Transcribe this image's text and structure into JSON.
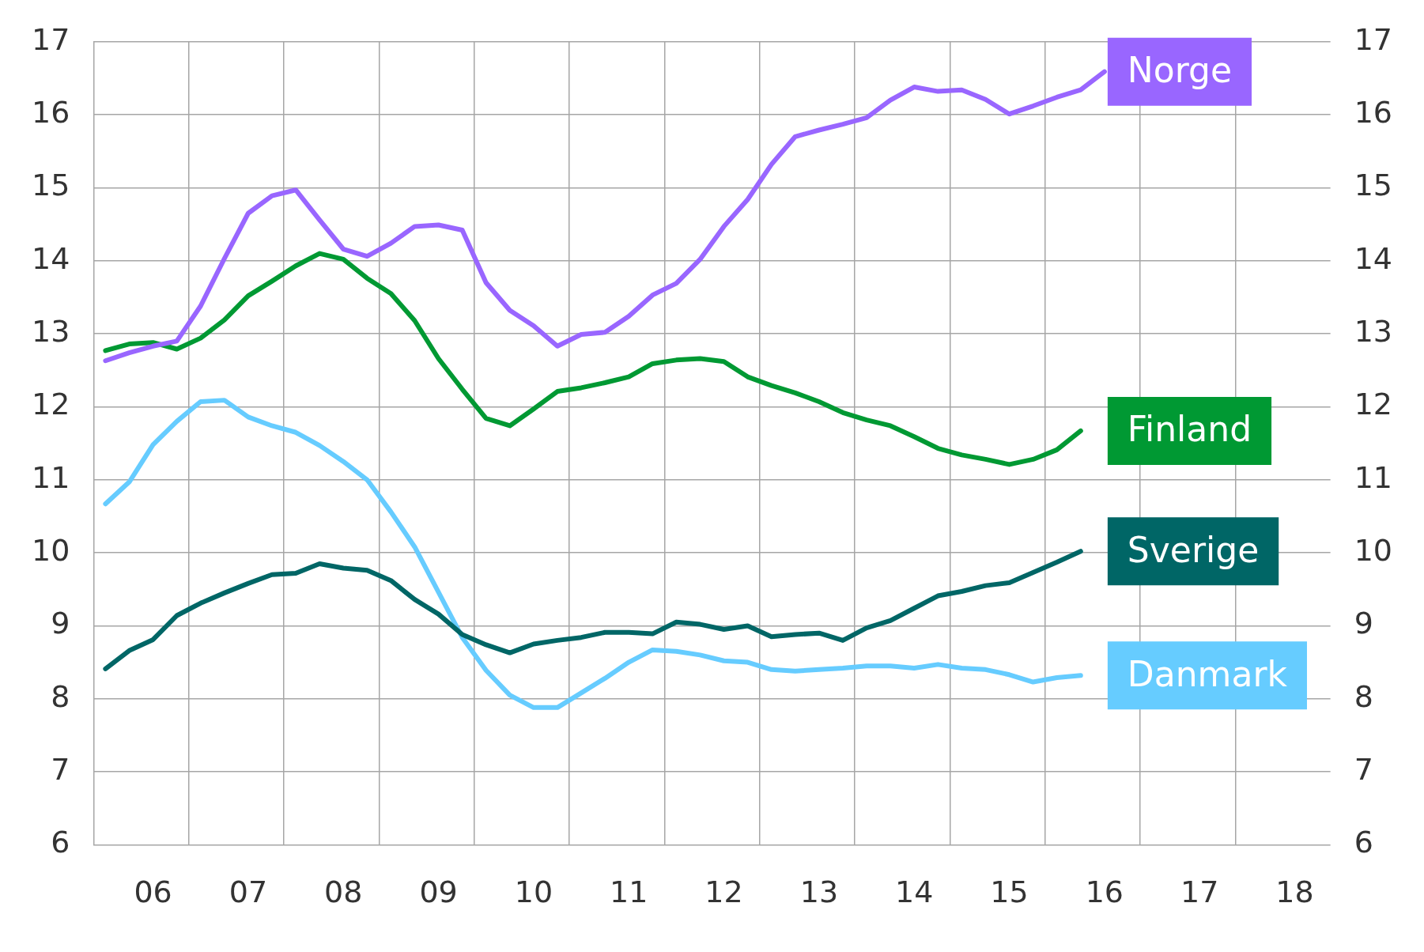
{
  "chart_data": {
    "type": "line",
    "categories": [
      null,
      null,
      "06",
      null,
      null,
      null,
      "07",
      null,
      null,
      null,
      "08",
      null,
      null,
      null,
      "09",
      null,
      null,
      null,
      "10",
      null,
      null,
      null,
      "11",
      null,
      null,
      null,
      "12",
      null,
      null,
      null,
      "13",
      null,
      null,
      null,
      "14",
      null,
      null,
      null,
      "15",
      null,
      null,
      null,
      "16",
      null,
      null,
      null,
      "17",
      null,
      null,
      null,
      "18",
      null
    ],
    "series": [
      {
        "name": "Norge",
        "color": "#9966ff",
        "values": [
          12.63,
          12.74,
          12.83,
          12.9,
          13.38,
          14.03,
          14.65,
          14.89,
          14.97,
          14.56,
          14.16,
          14.06,
          14.24,
          14.47,
          14.49,
          14.42,
          13.7,
          13.32,
          13.11,
          12.83,
          12.99,
          13.02,
          13.24,
          13.53,
          13.69,
          14.02,
          14.47,
          14.84,
          15.32,
          15.7,
          15.79,
          15.87,
          15.96,
          16.2,
          16.38,
          16.32,
          16.34,
          16.21,
          16.01,
          16.12,
          16.24,
          16.34,
          16.59,
          null,
          null,
          null,
          null,
          null,
          null,
          null,
          null,
          null
        ]
      },
      {
        "name": "Finland",
        "color": "#009933",
        "values": [
          12.77,
          12.86,
          12.88,
          12.79,
          12.94,
          13.19,
          13.52,
          13.72,
          13.93,
          14.1,
          14.02,
          13.76,
          13.55,
          13.18,
          12.66,
          12.24,
          11.84,
          11.74,
          11.97,
          12.21,
          12.26,
          12.33,
          12.41,
          12.59,
          12.64,
          12.66,
          12.62,
          12.41,
          12.29,
          12.19,
          12.07,
          11.92,
          11.82,
          11.74,
          11.59,
          11.43,
          11.34,
          11.28,
          11.21,
          11.28,
          11.41,
          11.67,
          null,
          null,
          null,
          null,
          null,
          null,
          null,
          null,
          null,
          null
        ]
      },
      {
        "name": "Sverige",
        "color": "#006666",
        "values": [
          8.41,
          8.66,
          8.81,
          9.14,
          9.31,
          9.45,
          9.58,
          9.7,
          9.72,
          9.85,
          9.79,
          9.76,
          9.62,
          9.36,
          9.16,
          8.88,
          8.74,
          8.63,
          8.75,
          8.8,
          8.84,
          8.91,
          8.91,
          8.89,
          9.05,
          9.02,
          8.95,
          9.0,
          8.85,
          8.88,
          8.9,
          8.8,
          8.97,
          9.07,
          9.24,
          9.41,
          9.47,
          9.55,
          9.59,
          9.73,
          9.87,
          10.02,
          null,
          null,
          null,
          null,
          null,
          null,
          null,
          null,
          null,
          null
        ]
      },
      {
        "name": "Danmark",
        "color": "#66ccff",
        "values": [
          10.67,
          10.97,
          11.48,
          11.8,
          12.07,
          12.09,
          11.86,
          11.74,
          11.65,
          11.47,
          11.25,
          11.0,
          10.56,
          10.08,
          9.46,
          8.84,
          8.39,
          8.05,
          7.88,
          7.88,
          8.08,
          8.28,
          8.5,
          8.67,
          8.65,
          8.6,
          8.52,
          8.5,
          8.4,
          8.38,
          8.4,
          8.42,
          8.45,
          8.45,
          8.42,
          8.47,
          8.42,
          8.4,
          8.33,
          8.23,
          8.29,
          8.32,
          null,
          null,
          null,
          null,
          null,
          null,
          null,
          null,
          null,
          null
        ]
      }
    ],
    "ylim": [
      6,
      17
    ],
    "yticks": [
      6,
      7,
      8,
      9,
      10,
      11,
      12,
      13,
      14,
      15,
      16,
      17
    ],
    "y2lim": [
      6,
      17
    ],
    "y2ticks": [
      6,
      7,
      8,
      9,
      10,
      11,
      12,
      13,
      14,
      15,
      16,
      17
    ],
    "grid": true,
    "legend": false,
    "marker": "none",
    "line_style": "solid"
  }
}
